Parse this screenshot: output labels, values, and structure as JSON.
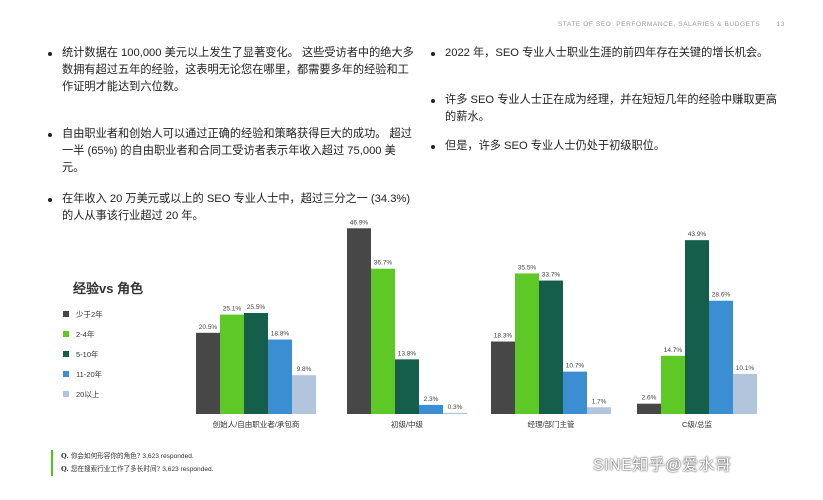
{
  "header": {
    "title": "STATE OF SEO: PERFORMANCE, SALARIES & BUDGETS",
    "page": "13"
  },
  "left_bullets": [
    "统计数据在 100,000 美元以上发生了显著变化。 这些受访者中的绝大多数拥有超过五年的经验，这表明无论您在哪里，都需要多年的经验和工作证明才能达到六位数。",
    "自由职业者和创始人可以通过正确的经验和策略获得巨大的成功。 超过一半 (65%) 的自由职业者和合同工受访者表示年收入超过 75,000 美元。",
    "在年收入 20 万美元或以上的 SEO 专业人士中，超过三分之一 (34.3%) 的人从事该行业超过 20 年。"
  ],
  "right_bullets": [
    "2022 年，SEO 专业人士职业生涯的前四年存在关键的增长机会。",
    "许多 SEO 专业人士正在成为经理，并在短短几年的经验中赚取更高的薪水。",
    "但是，许多 SEO 专业人士仍处于初级职位。"
  ],
  "chart_data": {
    "type": "bar",
    "title": "经验vs 角色",
    "categories": [
      "创始人/自由职业者/承包商",
      "初级/中级",
      "经理/部门主管",
      "C级/总监"
    ],
    "series": [
      {
        "name": "少于2年",
        "color": "#474747",
        "values": [
          20.5,
          46.9,
          18.3,
          2.6
        ]
      },
      {
        "name": "2-4年",
        "color": "#5ec926",
        "values": [
          25.1,
          36.7,
          35.5,
          14.7
        ]
      },
      {
        "name": "5-10年",
        "color": "#165e4c",
        "values": [
          25.5,
          13.8,
          33.7,
          43.9
        ]
      },
      {
        "name": "11-20年",
        "color": "#3b8ed1",
        "values": [
          18.8,
          2.3,
          10.7,
          28.6
        ]
      },
      {
        "name": "20以上",
        "color": "#b3c5dd",
        "values": [
          9.8,
          0.3,
          1.7,
          10.1
        ]
      }
    ],
    "value_suffix": "%",
    "ylim": [
      0,
      50
    ],
    "grid": false,
    "legend_position": "left"
  },
  "footer": {
    "q1_label": "Q.",
    "q1_text": "你会如何形容你的角色?",
    "q1_resp": "3,623 responded.",
    "q2_label": "Q.",
    "q2_text": "您在搜索行业工作了多长时间?",
    "q2_resp": "3,623 responded."
  },
  "watermark": "SINE知乎@爱水哥"
}
